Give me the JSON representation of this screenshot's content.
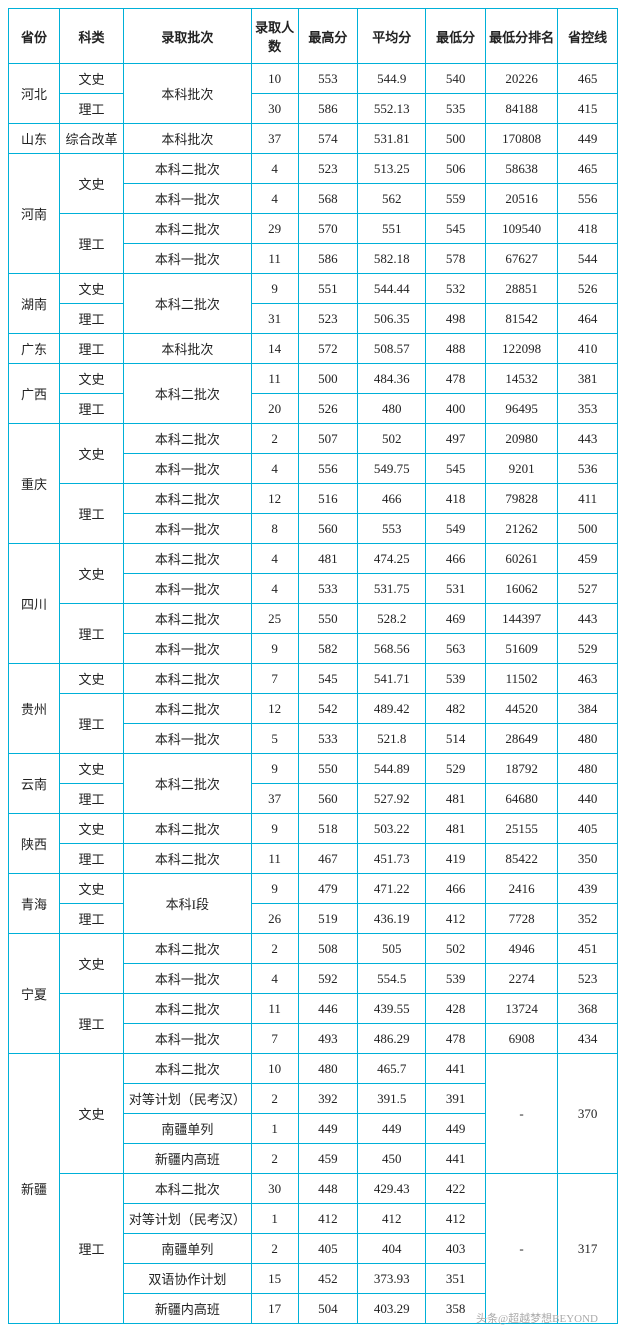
{
  "headers": [
    "省份",
    "科类",
    "录取批次",
    "录取人数",
    "最高分",
    "平均分",
    "最低分",
    "最低分排名",
    "省控线"
  ],
  "rows": [
    {
      "prov": "河北",
      "prov_rs": 2,
      "cat": "文史",
      "cat_rs": 1,
      "batch": "本科批次",
      "batch_rs": 2,
      "n": "10",
      "high": "553",
      "avg": "544.9",
      "low": "540",
      "rank": "20226",
      "line": "465"
    },
    {
      "cat": "理工",
      "cat_rs": 1,
      "n": "30",
      "high": "586",
      "avg": "552.13",
      "low": "535",
      "rank": "84188",
      "line": "415"
    },
    {
      "prov": "山东",
      "prov_rs": 1,
      "cat": "综合改革",
      "cat_rs": 1,
      "batch": "本科批次",
      "batch_rs": 1,
      "n": "37",
      "high": "574",
      "avg": "531.81",
      "low": "500",
      "rank": "170808",
      "line": "449"
    },
    {
      "prov": "河南",
      "prov_rs": 4,
      "cat": "文史",
      "cat_rs": 2,
      "batch": "本科二批次",
      "batch_rs": 1,
      "n": "4",
      "high": "523",
      "avg": "513.25",
      "low": "506",
      "rank": "58638",
      "line": "465"
    },
    {
      "batch": "本科一批次",
      "batch_rs": 1,
      "n": "4",
      "high": "568",
      "avg": "562",
      "low": "559",
      "rank": "20516",
      "line": "556"
    },
    {
      "cat": "理工",
      "cat_rs": 2,
      "batch": "本科二批次",
      "batch_rs": 1,
      "n": "29",
      "high": "570",
      "avg": "551",
      "low": "545",
      "rank": "109540",
      "line": "418"
    },
    {
      "batch": "本科一批次",
      "batch_rs": 1,
      "n": "11",
      "high": "586",
      "avg": "582.18",
      "low": "578",
      "rank": "67627",
      "line": "544"
    },
    {
      "prov": "湖南",
      "prov_rs": 2,
      "cat": "文史",
      "cat_rs": 1,
      "batch": "本科二批次",
      "batch_rs": 2,
      "n": "9",
      "high": "551",
      "avg": "544.44",
      "low": "532",
      "rank": "28851",
      "line": "526"
    },
    {
      "cat": "理工",
      "cat_rs": 1,
      "n": "31",
      "high": "523",
      "avg": "506.35",
      "low": "498",
      "rank": "81542",
      "line": "464"
    },
    {
      "prov": "广东",
      "prov_rs": 1,
      "cat": "理工",
      "cat_rs": 1,
      "batch": "本科批次",
      "batch_rs": 1,
      "n": "14",
      "high": "572",
      "avg": "508.57",
      "low": "488",
      "rank": "122098",
      "line": "410"
    },
    {
      "prov": "广西",
      "prov_rs": 2,
      "cat": "文史",
      "cat_rs": 1,
      "batch": "本科二批次",
      "batch_rs": 2,
      "n": "11",
      "high": "500",
      "avg": "484.36",
      "low": "478",
      "rank": "14532",
      "line": "381"
    },
    {
      "cat": "理工",
      "cat_rs": 1,
      "n": "20",
      "high": "526",
      "avg": "480",
      "low": "400",
      "rank": "96495",
      "line": "353"
    },
    {
      "prov": "重庆",
      "prov_rs": 4,
      "cat": "文史",
      "cat_rs": 2,
      "batch": "本科二批次",
      "batch_rs": 1,
      "n": "2",
      "high": "507",
      "avg": "502",
      "low": "497",
      "rank": "20980",
      "line": "443"
    },
    {
      "batch": "本科一批次",
      "batch_rs": 1,
      "n": "4",
      "high": "556",
      "avg": "549.75",
      "low": "545",
      "rank": "9201",
      "line": "536"
    },
    {
      "cat": "理工",
      "cat_rs": 2,
      "batch": "本科二批次",
      "batch_rs": 1,
      "n": "12",
      "high": "516",
      "avg": "466",
      "low": "418",
      "rank": "79828",
      "line": "411"
    },
    {
      "batch": "本科一批次",
      "batch_rs": 1,
      "n": "8",
      "high": "560",
      "avg": "553",
      "low": "549",
      "rank": "21262",
      "line": "500"
    },
    {
      "prov": "四川",
      "prov_rs": 4,
      "cat": "文史",
      "cat_rs": 2,
      "batch": "本科二批次",
      "batch_rs": 1,
      "n": "4",
      "high": "481",
      "avg": "474.25",
      "low": "466",
      "rank": "60261",
      "line": "459"
    },
    {
      "batch": "本科一批次",
      "batch_rs": 1,
      "n": "4",
      "high": "533",
      "avg": "531.75",
      "low": "531",
      "rank": "16062",
      "line": "527"
    },
    {
      "cat": "理工",
      "cat_rs": 2,
      "batch": "本科二批次",
      "batch_rs": 1,
      "n": "25",
      "high": "550",
      "avg": "528.2",
      "low": "469",
      "rank": "144397",
      "line": "443"
    },
    {
      "batch": "本科一批次",
      "batch_rs": 1,
      "n": "9",
      "high": "582",
      "avg": "568.56",
      "low": "563",
      "rank": "51609",
      "line": "529"
    },
    {
      "prov": "贵州",
      "prov_rs": 3,
      "cat": "文史",
      "cat_rs": 1,
      "batch": "本科二批次",
      "batch_rs": 1,
      "n": "7",
      "high": "545",
      "avg": "541.71",
      "low": "539",
      "rank": "11502",
      "line": "463"
    },
    {
      "cat": "理工",
      "cat_rs": 2,
      "batch": "本科二批次",
      "batch_rs": 1,
      "n": "12",
      "high": "542",
      "avg": "489.42",
      "low": "482",
      "rank": "44520",
      "line": "384"
    },
    {
      "batch": "本科一批次",
      "batch_rs": 1,
      "n": "5",
      "high": "533",
      "avg": "521.8",
      "low": "514",
      "rank": "28649",
      "line": "480"
    },
    {
      "prov": "云南",
      "prov_rs": 2,
      "cat": "文史",
      "cat_rs": 1,
      "batch": "本科二批次",
      "batch_rs": 2,
      "n": "9",
      "high": "550",
      "avg": "544.89",
      "low": "529",
      "rank": "18792",
      "line": "480"
    },
    {
      "cat": "理工",
      "cat_rs": 1,
      "n": "37",
      "high": "560",
      "avg": "527.92",
      "low": "481",
      "rank": "64680",
      "line": "440"
    },
    {
      "prov": "陕西",
      "prov_rs": 2,
      "cat": "文史",
      "cat_rs": 1,
      "batch": "本科二批次",
      "batch_rs": 1,
      "n": "9",
      "high": "518",
      "avg": "503.22",
      "low": "481",
      "rank": "25155",
      "line": "405"
    },
    {
      "cat": "理工",
      "cat_rs": 1,
      "batch": "本科二批次",
      "batch_rs": 1,
      "n": "11",
      "high": "467",
      "avg": "451.73",
      "low": "419",
      "rank": "85422",
      "line": "350"
    },
    {
      "prov": "青海",
      "prov_rs": 2,
      "cat": "文史",
      "cat_rs": 1,
      "batch": "本科I段",
      "batch_rs": 2,
      "n": "9",
      "high": "479",
      "avg": "471.22",
      "low": "466",
      "rank": "2416",
      "line": "439"
    },
    {
      "cat": "理工",
      "cat_rs": 1,
      "n": "26",
      "high": "519",
      "avg": "436.19",
      "low": "412",
      "rank": "7728",
      "line": "352"
    },
    {
      "prov": "宁夏",
      "prov_rs": 4,
      "cat": "文史",
      "cat_rs": 2,
      "batch": "本科二批次",
      "batch_rs": 1,
      "n": "2",
      "high": "508",
      "avg": "505",
      "low": "502",
      "rank": "4946",
      "line": "451"
    },
    {
      "batch": "本科一批次",
      "batch_rs": 1,
      "n": "4",
      "high": "592",
      "avg": "554.5",
      "low": "539",
      "rank": "2274",
      "line": "523"
    },
    {
      "cat": "理工",
      "cat_rs": 2,
      "batch": "本科二批次",
      "batch_rs": 1,
      "n": "11",
      "high": "446",
      "avg": "439.55",
      "low": "428",
      "rank": "13724",
      "line": "368"
    },
    {
      "batch": "本科一批次",
      "batch_rs": 1,
      "n": "7",
      "high": "493",
      "avg": "486.29",
      "low": "478",
      "rank": "6908",
      "line": "434"
    },
    {
      "prov": "新疆",
      "prov_rs": 9,
      "cat": "文史",
      "cat_rs": 4,
      "batch": "本科二批次",
      "batch_rs": 1,
      "n": "10",
      "high": "480",
      "avg": "465.7",
      "low": "441",
      "rank": "-",
      "rank_rs": 4,
      "line": "370",
      "line_rs": 4
    },
    {
      "batch": "对等计划（民考汉）",
      "batch_rs": 1,
      "n": "2",
      "high": "392",
      "avg": "391.5",
      "low": "391"
    },
    {
      "batch": "南疆单列",
      "batch_rs": 1,
      "n": "1",
      "high": "449",
      "avg": "449",
      "low": "449"
    },
    {
      "batch": "新疆内高班",
      "batch_rs": 1,
      "n": "2",
      "high": "459",
      "avg": "450",
      "low": "441"
    },
    {
      "cat": "理工",
      "cat_rs": 5,
      "batch": "本科二批次",
      "batch_rs": 1,
      "n": "30",
      "high": "448",
      "avg": "429.43",
      "low": "422",
      "rank": "-",
      "rank_rs": 5,
      "line": "317",
      "line_rs": 5
    },
    {
      "batch": "对等计划（民考汉）",
      "batch_rs": 1,
      "n": "1",
      "high": "412",
      "avg": "412",
      "low": "412"
    },
    {
      "batch": "南疆单列",
      "batch_rs": 1,
      "n": "2",
      "high": "405",
      "avg": "404",
      "low": "403"
    },
    {
      "batch": "双语协作计划",
      "batch_rs": 1,
      "n": "15",
      "high": "452",
      "avg": "373.93",
      "low": "351"
    },
    {
      "batch": "新疆内高班",
      "batch_rs": 1,
      "n": "17",
      "high": "504",
      "avg": "403.29",
      "low": "358"
    }
  ],
  "watermark": "头条@超越梦想BEYOND",
  "colors": {
    "border": "#00b0d8",
    "text": "#222222",
    "bg": "#ffffff"
  }
}
